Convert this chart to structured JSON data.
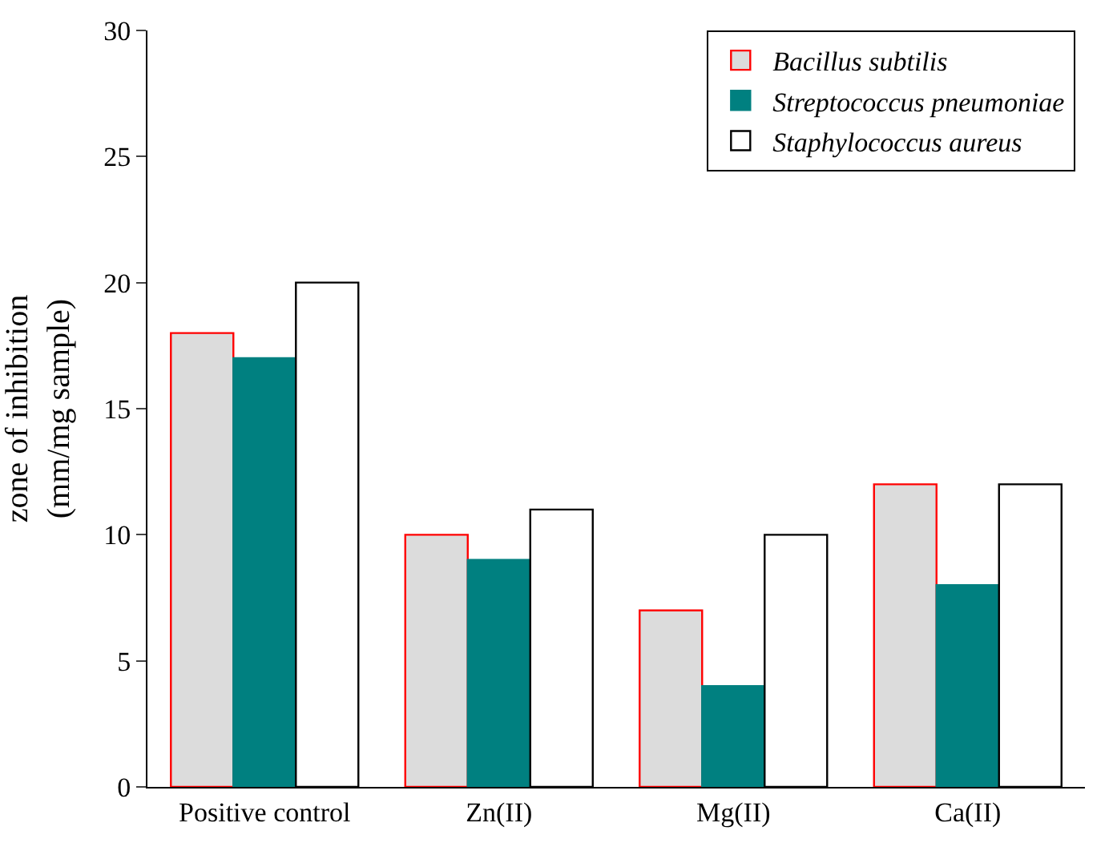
{
  "chart_data": {
    "type": "bar",
    "ylabel": "zone of inhibition\n(mm/mg sample)",
    "categories": [
      "Positive control",
      "Zn(II)",
      "Mg(II)",
      "Ca(II)"
    ],
    "series": [
      {
        "name": "Bacillus subtilis",
        "color": "#dcdcdc",
        "values": [
          18,
          10,
          7,
          12
        ]
      },
      {
        "name": "Streptococcus pneumoniae",
        "color": "#008080",
        "values": [
          17,
          9,
          4,
          8
        ]
      },
      {
        "name": "Staphylococcus aureus",
        "color": "#ffffff",
        "values": [
          20,
          11,
          10,
          12
        ]
      }
    ],
    "ylim": [
      0,
      30
    ],
    "yticks": [
      0,
      5,
      10,
      15,
      20,
      25,
      30
    ],
    "legend": "top right"
  }
}
